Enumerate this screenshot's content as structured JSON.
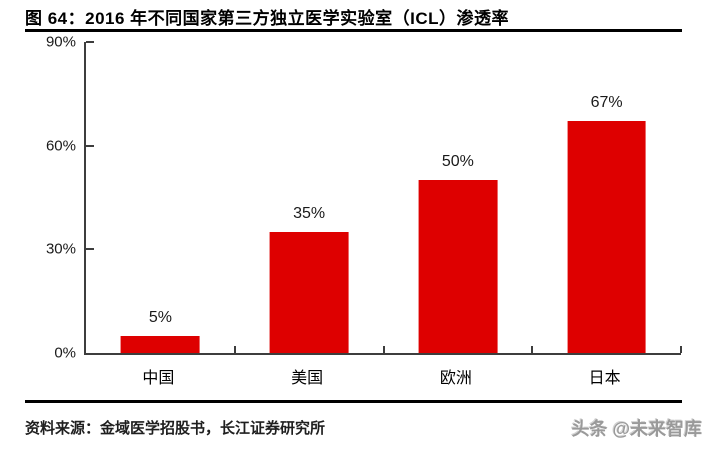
{
  "page": {
    "title": "图 64：2016 年不同国家第三方独立医学实验室（ICL）渗透率",
    "footer": {
      "source": "资料来源：金域医学招股书，长江证券研究所",
      "watermark": "头条 @未来智库"
    }
  },
  "chart_data": {
    "type": "bar",
    "title": "2016 年不同国家第三方独立医学实验室（ICL）渗透率",
    "categories": [
      "中国",
      "美国",
      "欧洲",
      "日本"
    ],
    "values": [
      5,
      35,
      50,
      67
    ],
    "value_labels": [
      "5%",
      "35%",
      "50%",
      "67%"
    ],
    "xlabel": "",
    "ylabel": "",
    "ylim": [
      0,
      90
    ],
    "yticks": [
      0,
      30,
      60,
      90
    ],
    "ytick_labels": [
      "0%",
      "30%",
      "60%",
      "90%"
    ],
    "grid": false,
    "legend_position": "none",
    "bar_color": "#de0000",
    "axis_color": "#3d3d3d",
    "label_color": "#1a1a1a"
  }
}
